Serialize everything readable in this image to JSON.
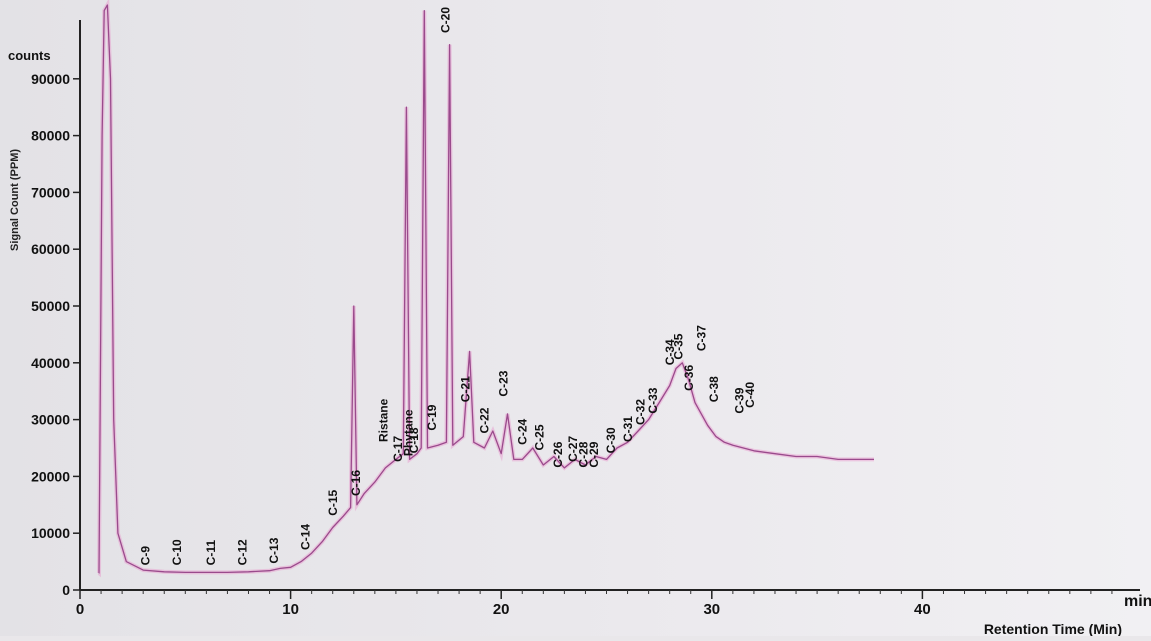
{
  "chart_data": {
    "type": "line",
    "ylabel": "Signal Count (PPM)",
    "xlabel": "Retention Time (Min)",
    "y_unit": "counts",
    "x_unit": "min",
    "xlim": [
      0,
      50
    ],
    "ylim": [
      0,
      100000
    ],
    "x_ticks": [
      0,
      10,
      20,
      30,
      40
    ],
    "y_ticks": [
      0,
      10000,
      20000,
      30000,
      40000,
      50000,
      60000,
      70000,
      80000,
      90000
    ],
    "line_color": "#9a4a8c",
    "fill_color": "#e97fc4",
    "grid": false,
    "series": [
      {
        "points": [
          [
            0.9,
            3000
          ],
          [
            1.05,
            80000
          ],
          [
            1.15,
            102000
          ],
          [
            1.3,
            103000
          ],
          [
            1.45,
            90000
          ],
          [
            1.6,
            30000
          ],
          [
            1.8,
            10000
          ],
          [
            2.2,
            5000
          ],
          [
            3,
            3500
          ],
          [
            4,
            3200
          ],
          [
            5,
            3100
          ],
          [
            6,
            3100
          ],
          [
            7,
            3100
          ],
          [
            8,
            3200
          ],
          [
            9,
            3400
          ],
          [
            9.5,
            3800
          ],
          [
            10,
            4000
          ],
          [
            10.5,
            5000
          ],
          [
            11,
            6500
          ],
          [
            11.5,
            8500
          ],
          [
            12,
            11000
          ],
          [
            12.5,
            13000
          ],
          [
            12.85,
            14500
          ],
          [
            13.0,
            50000
          ],
          [
            13.15,
            15000
          ],
          [
            13.5,
            17000
          ],
          [
            14,
            19000
          ],
          [
            14.5,
            21500
          ],
          [
            15,
            23000
          ],
          [
            15.35,
            24000
          ],
          [
            15.5,
            85000
          ],
          [
            15.65,
            23000
          ],
          [
            16.0,
            24000
          ],
          [
            16.2,
            25000
          ],
          [
            16.35,
            102000
          ],
          [
            16.5,
            25000
          ],
          [
            17,
            25500
          ],
          [
            17.4,
            26000
          ],
          [
            17.55,
            96000
          ],
          [
            17.7,
            25500
          ],
          [
            18.2,
            27000
          ],
          [
            18.5,
            42000
          ],
          [
            18.7,
            26000
          ],
          [
            19.2,
            25000
          ],
          [
            19.6,
            28000
          ],
          [
            20,
            24000
          ],
          [
            20.3,
            31000
          ],
          [
            20.6,
            23000
          ],
          [
            21,
            23000
          ],
          [
            21.5,
            25000
          ],
          [
            22,
            22000
          ],
          [
            22.5,
            23500
          ],
          [
            23,
            21500
          ],
          [
            23.5,
            23000
          ],
          [
            24,
            22000
          ],
          [
            24.5,
            23500
          ],
          [
            25,
            23000
          ],
          [
            25.5,
            25000
          ],
          [
            26,
            26000
          ],
          [
            26.5,
            28000
          ],
          [
            27,
            30000
          ],
          [
            27.5,
            33000
          ],
          [
            28,
            36000
          ],
          [
            28.3,
            39000
          ],
          [
            28.6,
            40000
          ],
          [
            28.9,
            37000
          ],
          [
            29.2,
            33000
          ],
          [
            29.5,
            31000
          ],
          [
            29.8,
            29000
          ],
          [
            30.2,
            27000
          ],
          [
            30.6,
            26000
          ],
          [
            31,
            25500
          ],
          [
            31.5,
            25000
          ],
          [
            32,
            24500
          ],
          [
            33,
            24000
          ],
          [
            34,
            23500
          ],
          [
            35,
            23500
          ],
          [
            36,
            23000
          ],
          [
            37,
            23000
          ],
          [
            37.7,
            23000
          ]
        ]
      }
    ],
    "annotations": [
      {
        "label": "C-9",
        "x": 3.3,
        "y": 3300
      },
      {
        "label": "C-10",
        "x": 4.8,
        "y": 3300
      },
      {
        "label": "C-11",
        "x": 6.4,
        "y": 3300
      },
      {
        "label": "C-12",
        "x": 7.9,
        "y": 3300
      },
      {
        "label": "C-13",
        "x": 9.4,
        "y": 3600
      },
      {
        "label": "C-14",
        "x": 10.9,
        "y": 6000
      },
      {
        "label": "C-15",
        "x": 12.2,
        "y": 12000
      },
      {
        "label": "C-16",
        "x": 13.3,
        "y": 15500
      },
      {
        "label": "Ristane",
        "x": 14.6,
        "y": 25000
      },
      {
        "label": "C-17",
        "x": 15.3,
        "y": 21500
      },
      {
        "label": "Phytane",
        "x": 15.8,
        "y": 22500
      },
      {
        "label": "C-18",
        "x": 16.05,
        "y": 23000
      },
      {
        "label": "C-19",
        "x": 16.9,
        "y": 27000
      },
      {
        "label": "C-20",
        "x": 17.55,
        "y": 97000
      },
      {
        "label": "C-21",
        "x": 18.5,
        "y": 32000
      },
      {
        "label": "C-22",
        "x": 19.4,
        "y": 26500
      },
      {
        "label": "C-23",
        "x": 20.3,
        "y": 33000
      },
      {
        "label": "C-24",
        "x": 21.2,
        "y": 24500
      },
      {
        "label": "C-25",
        "x": 22.0,
        "y": 23500
      },
      {
        "label": "C-26",
        "x": 22.9,
        "y": 20500
      },
      {
        "label": "C-27",
        "x": 23.6,
        "y": 21500
      },
      {
        "label": "C-28",
        "x": 24.1,
        "y": 20500
      },
      {
        "label": "C-29",
        "x": 24.6,
        "y": 20500
      },
      {
        "label": "C-30",
        "x": 25.4,
        "y": 23000
      },
      {
        "label": "C-31",
        "x": 26.2,
        "y": 25000
      },
      {
        "label": "C-32",
        "x": 26.8,
        "y": 28000
      },
      {
        "label": "C-33",
        "x": 27.4,
        "y": 30000
      },
      {
        "label": "C-34",
        "x": 28.2,
        "y": 38500
      },
      {
        "label": "C-35",
        "x": 28.6,
        "y": 39500
      },
      {
        "label": "C-36",
        "x": 29.1,
        "y": 34000
      },
      {
        "label": "C-37",
        "x": 29.7,
        "y": 41000
      },
      {
        "label": "C-38",
        "x": 30.3,
        "y": 32000
      },
      {
        "label": "C-39",
        "x": 31.5,
        "y": 30000
      },
      {
        "label": "C-40",
        "x": 32.0,
        "y": 31000
      }
    ]
  }
}
